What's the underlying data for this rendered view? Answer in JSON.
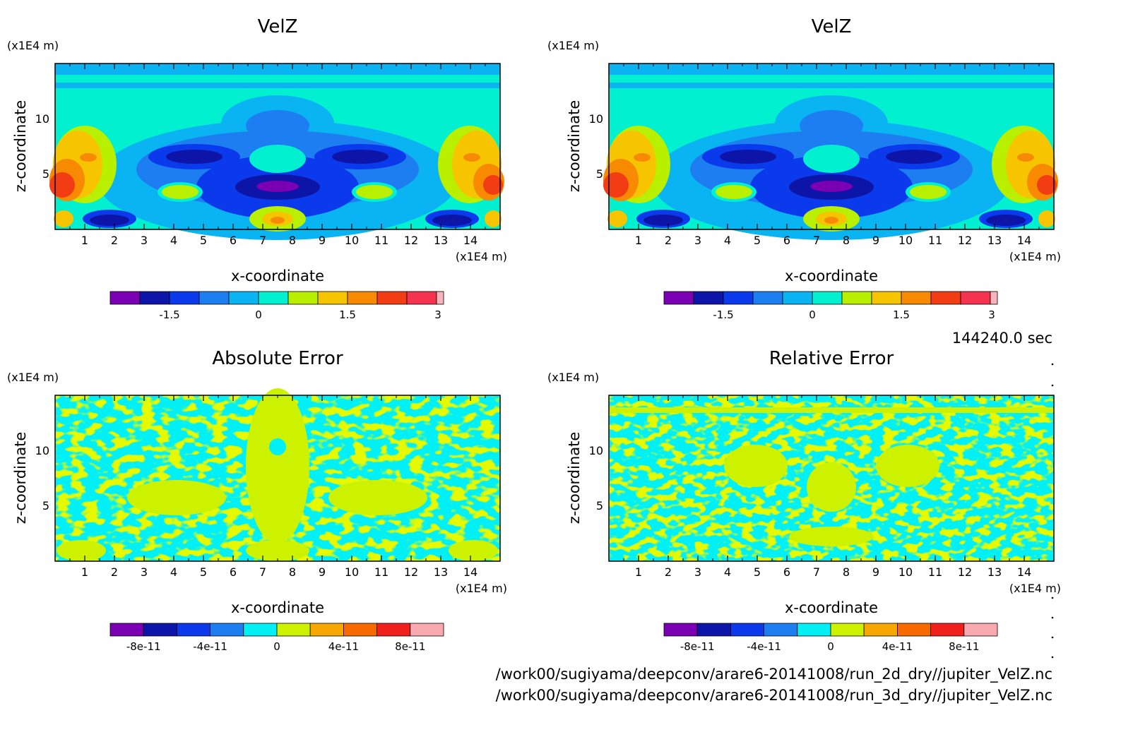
{
  "time_label": "144240.0 sec",
  "footer": {
    "file1": "/work00/sugiyama/deepconv/arare6-20141008/run_2d_dry//jupiter_VelZ.nc",
    "file2": "/work00/sugiyama/deepconv/arare6-20141008/run_3d_dry//jupiter_VelZ.nc"
  },
  "chart_data": [
    {
      "type": "heatmap",
      "panel": "top-left",
      "title": "VelZ",
      "xlabel": "x-coordinate",
      "ylabel": "z-coordinate",
      "x_unit": "(x1E4 m)",
      "y_unit": "(x1E4 m)",
      "xlim": [
        0,
        15
      ],
      "ylim": [
        0,
        15
      ],
      "x_ticks": [
        "1",
        "2",
        "3",
        "4",
        "5",
        "6",
        "7",
        "8",
        "9",
        "10",
        "11",
        "12",
        "13",
        "14"
      ],
      "y_ticks": [
        "5",
        "10"
      ],
      "colorbar_ticks": [
        "-1.5",
        "0",
        "1.5",
        "3"
      ],
      "field": "velz"
    },
    {
      "type": "heatmap",
      "panel": "top-right",
      "title": "VelZ",
      "xlabel": "x-coordinate",
      "ylabel": "z-coordinate",
      "x_unit": "(x1E4 m)",
      "y_unit": "(x1E4 m)",
      "xlim": [
        0,
        15
      ],
      "ylim": [
        0,
        15
      ],
      "x_ticks": [
        "1",
        "2",
        "3",
        "4",
        "5",
        "6",
        "7",
        "8",
        "9",
        "10",
        "11",
        "12",
        "13",
        "14"
      ],
      "y_ticks": [
        "5",
        "10"
      ],
      "colorbar_ticks": [
        "-1.5",
        "0",
        "1.5",
        "3"
      ],
      "field": "velz"
    },
    {
      "type": "heatmap",
      "panel": "bottom-left",
      "title": "Absolute Error",
      "xlabel": "x-coordinate",
      "ylabel": "z-coordinate",
      "x_unit": "(x1E4 m)",
      "y_unit": "(x1E4 m)",
      "xlim": [
        0,
        15
      ],
      "ylim": [
        0,
        15
      ],
      "x_ticks": [
        "1",
        "2",
        "3",
        "4",
        "5",
        "6",
        "7",
        "8",
        "9",
        "10",
        "11",
        "12",
        "13",
        "14"
      ],
      "y_ticks": [
        "5",
        "10"
      ],
      "colorbar_ticks": [
        "-8e-11",
        "-4e-11",
        "0",
        "4e-11",
        "8e-11"
      ],
      "field": "abs_error"
    },
    {
      "type": "heatmap",
      "panel": "bottom-right",
      "title": "Relative Error",
      "xlabel": "x-coordinate",
      "ylabel": "z-coordinate",
      "x_unit": "(x1E4 m)",
      "y_unit": "(x1E4 m)",
      "xlim": [
        0,
        15
      ],
      "ylim": [
        0,
        15
      ],
      "x_ticks": [
        "1",
        "2",
        "3",
        "4",
        "5",
        "6",
        "7",
        "8",
        "9",
        "10",
        "11",
        "12",
        "13",
        "14"
      ],
      "y_ticks": [
        "5",
        "10"
      ],
      "colorbar_ticks": [
        "-8e-11",
        "-4e-11",
        "0",
        "4e-11",
        "8e-11"
      ],
      "field": "rel_error"
    }
  ],
  "colors": {
    "velz_bar": [
      "#7b00b3",
      "#0d15a8",
      "#0a3aeb",
      "#1d7ef2",
      "#0ab4f2",
      "#00f0d0",
      "#b8f000",
      "#f7c400",
      "#f78a00",
      "#f23c14",
      "#f5334f",
      "#f8b4b8"
    ],
    "error_bar": [
      "#7b00b3",
      "#0d15a8",
      "#0a3aeb",
      "#1d7ef2",
      "#00f0f5",
      "#ccf200",
      "#f7a800",
      "#f76a00",
      "#f0201a",
      "#f8aab0"
    ]
  }
}
